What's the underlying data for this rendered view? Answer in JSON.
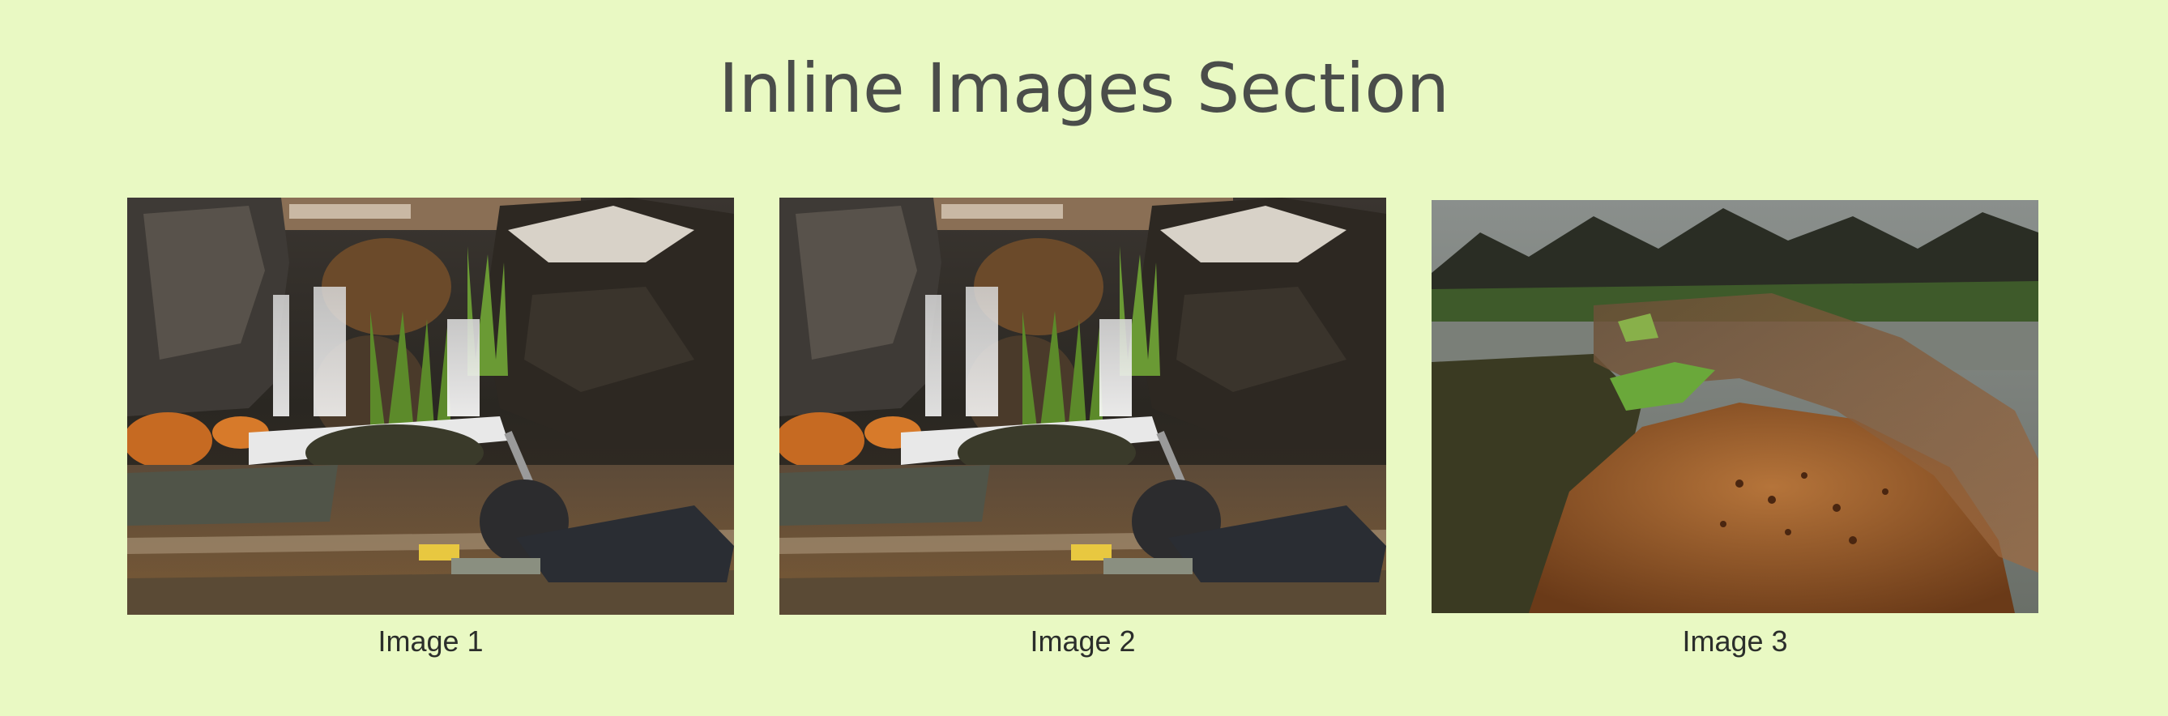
{
  "page": {
    "title": "Inline Images Section",
    "background": "#e9f9c3"
  },
  "gallery": {
    "images": [
      {
        "caption": "Image 1",
        "subject": "waterfall-snorkeler-photo"
      },
      {
        "caption": "Image 2",
        "subject": "waterfall-snorkeler-photo"
      },
      {
        "caption": "Image 3",
        "subject": "river-rock-underwater-photo"
      }
    ]
  }
}
